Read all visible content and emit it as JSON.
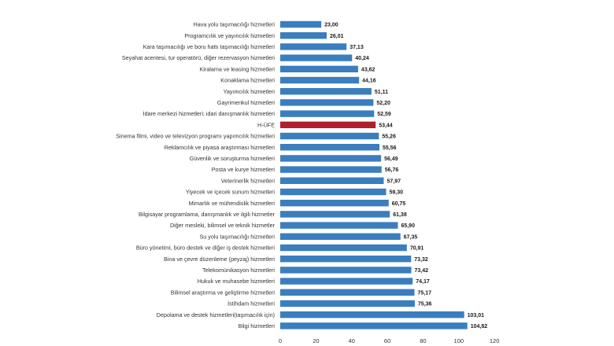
{
  "chart_data": {
    "type": "bar",
    "orientation": "horizontal",
    "categories": [
      "Hava yolu taşımacılığı hizmetleri",
      "Programcılık ve yayıncılık hizmetleri",
      "Kara taşımacılığı ve boru hattı taşımacılığı hizmetleri",
      "Seyahat acentesi, tur operatörü, diğer rezervasyon hizmetleri",
      "Kiralama ve leasing hizmetleri",
      "Konaklama hizmetleri",
      "Yayımcılık hizmetleri",
      "Gayrimenkul hizmetleri",
      "İdare merkezi hizmetleri; idari danışmanlık hizmetleri",
      "H-ÜFE",
      "Sinema filmi, video ve televizyon programı yapımcılık hizmetleri",
      "Reklamcılık ve piyasa araştırması hizmetleri",
      "Güvenlik ve soruşturma hizmetleri",
      "Posta ve kurye hizmetleri",
      "Veterinerlik hizmetleri",
      "Yiyecek ve içecek sunum hizmetleri",
      "Mimarlık ve mühendislik hizmetleri",
      "Bilgisayar programlama, danışmanlık ve ilgili hizmetler",
      "Diğer mesleki, bilimsel ve teknik hizmetler",
      "Su yolu taşımacılığı hizmetleri",
      "Büro yönetimi, büro destek ve diğer iş destek hizmetleri",
      "Bina ve çevre düzenleme (peyzaj) hizmetleri",
      "Telekomünikasyon hizmetleri",
      "Hukuk ve muhasebe hizmetleri",
      "Bilimsel araştırma ve geliştirme hizmetleri",
      "İstihdam hizmetleri",
      "Depolama ve destek hizmetleri(taşımacılık için)",
      "Bilgi hizmetleri"
    ],
    "values": [
      23.0,
      26.01,
      37.13,
      40.24,
      43.62,
      44.16,
      51.11,
      52.2,
      52.59,
      53.44,
      55.26,
      55.56,
      56.49,
      56.76,
      57.97,
      59.3,
      60.75,
      61.38,
      65.9,
      67.35,
      70.91,
      73.32,
      73.42,
      74.17,
      75.17,
      75.36,
      103.01,
      104.82
    ],
    "value_labels": [
      "23,00",
      "26,01",
      "37,13",
      "40,24",
      "43,62",
      "44,16",
      "51,11",
      "52,20",
      "52,59",
      "53,44",
      "55,26",
      "55,56",
      "56,49",
      "56,76",
      "57,97",
      "59,30",
      "60,75",
      "61,38",
      "65,90",
      "67,35",
      "70,91",
      "73,32",
      "73,42",
      "74,17",
      "75,17",
      "75,36",
      "103,01",
      "104,82"
    ],
    "highlight_category": "H-ÜFE",
    "xlim": [
      0,
      120
    ],
    "xticks": [
      0,
      20,
      40,
      60,
      80,
      100,
      120
    ],
    "grid": false,
    "legend": "none",
    "colors": {
      "bar": "#3a7ebf",
      "highlight": "#b0202c"
    },
    "title": "",
    "xlabel": "",
    "ylabel": ""
  }
}
